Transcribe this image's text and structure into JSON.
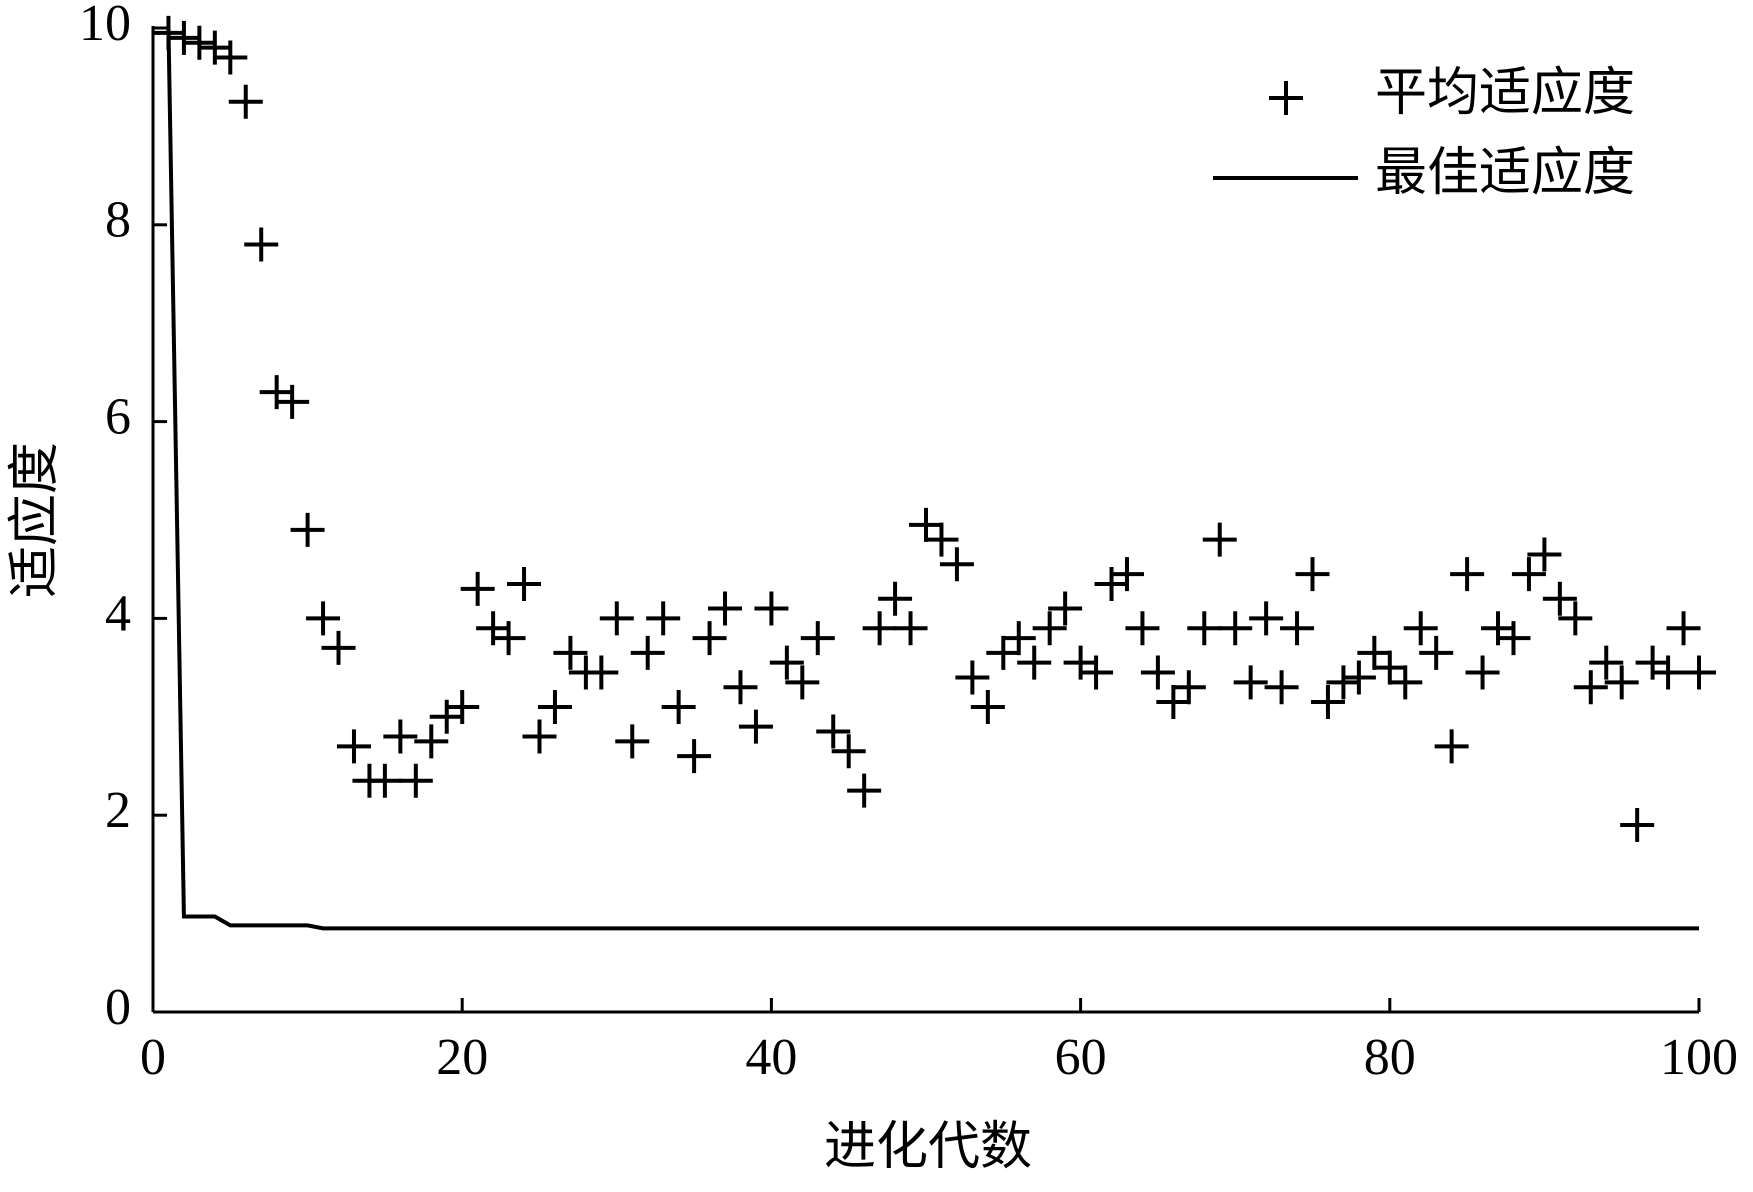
{
  "chart_data": {
    "type": "line",
    "x_label": "进化代数",
    "y_label": "适应度",
    "xlim": [
      0,
      100
    ],
    "xticks": [
      0,
      20,
      40,
      60,
      80,
      100
    ],
    "ylim": [
      0,
      10
    ],
    "yticks": [
      0,
      2,
      4,
      6,
      8,
      10
    ],
    "grid": false,
    "legend": "upper right",
    "x": [
      1,
      2,
      3,
      4,
      5,
      6,
      7,
      8,
      9,
      10,
      11,
      12,
      13,
      14,
      15,
      16,
      17,
      18,
      19,
      20,
      21,
      22,
      23,
      24,
      25,
      26,
      27,
      28,
      29,
      30,
      31,
      32,
      33,
      34,
      35,
      36,
      37,
      38,
      39,
      40,
      41,
      42,
      43,
      44,
      45,
      46,
      47,
      48,
      49,
      50,
      51,
      52,
      53,
      54,
      55,
      56,
      57,
      58,
      59,
      60,
      61,
      62,
      63,
      64,
      65,
      66,
      67,
      68,
      69,
      70,
      71,
      72,
      73,
      74,
      75,
      76,
      77,
      78,
      79,
      80,
      81,
      82,
      83,
      84,
      85,
      86,
      87,
      88,
      89,
      90,
      91,
      92,
      93,
      94,
      95,
      96,
      97,
      98,
      99,
      100
    ],
    "series": [
      {
        "name": "平均适应度",
        "type": "scatter",
        "marker": "+",
        "color": "#000000",
        "values": [
          9.95,
          9.9,
          9.85,
          9.8,
          9.7,
          9.25,
          7.8,
          6.3,
          6.2,
          4.9,
          4.0,
          3.7,
          2.7,
          2.35,
          2.35,
          2.8,
          2.35,
          2.75,
          3.0,
          3.1,
          4.3,
          3.9,
          3.8,
          4.35,
          2.8,
          3.1,
          3.65,
          3.45,
          3.45,
          4.0,
          2.75,
          3.65,
          4.0,
          3.1,
          2.6,
          3.8,
          4.1,
          3.3,
          2.9,
          4.1,
          3.55,
          3.35,
          3.8,
          2.85,
          2.65,
          2.25,
          3.9,
          4.2,
          3.9,
          4.95,
          4.8,
          4.55,
          3.4,
          3.1,
          3.65,
          3.8,
          3.55,
          3.9,
          4.1,
          3.55,
          3.45,
          4.35,
          4.45,
          3.9,
          3.45,
          3.15,
          3.3,
          3.9,
          4.8,
          3.9,
          3.35,
          4.0,
          3.3,
          3.9,
          4.45,
          3.15,
          3.35,
          3.4,
          3.65,
          3.5,
          3.35,
          3.9,
          3.65,
          2.7,
          4.45,
          3.45,
          3.9,
          3.8,
          4.45,
          4.65,
          4.2,
          4.0,
          3.3,
          3.55,
          3.35,
          1.9,
          3.55,
          3.45,
          3.9,
          3.45
        ]
      },
      {
        "name": "最佳适应度",
        "type": "line",
        "color": "#000000",
        "values": [
          10,
          0.97,
          0.97,
          0.97,
          0.88,
          0.88,
          0.88,
          0.88,
          0.88,
          0.88,
          0.85,
          0.85,
          0.85,
          0.85,
          0.85,
          0.85,
          0.85,
          0.85,
          0.85,
          0.85,
          0.85,
          0.85,
          0.85,
          0.85,
          0.85,
          0.85,
          0.85,
          0.85,
          0.85,
          0.85,
          0.85,
          0.85,
          0.85,
          0.85,
          0.85,
          0.85,
          0.85,
          0.85,
          0.85,
          0.85,
          0.85,
          0.85,
          0.85,
          0.85,
          0.85,
          0.85,
          0.85,
          0.85,
          0.85,
          0.85,
          0.85,
          0.85,
          0.85,
          0.85,
          0.85,
          0.85,
          0.85,
          0.85,
          0.85,
          0.85,
          0.85,
          0.85,
          0.85,
          0.85,
          0.85,
          0.85,
          0.85,
          0.85,
          0.85,
          0.85,
          0.85,
          0.85,
          0.85,
          0.85,
          0.85,
          0.85,
          0.85,
          0.85,
          0.85,
          0.85,
          0.85,
          0.85,
          0.85,
          0.85,
          0.85,
          0.85,
          0.85,
          0.85,
          0.85,
          0.85,
          0.85,
          0.85,
          0.85,
          0.85,
          0.85,
          0.85,
          0.85,
          0.85,
          0.85,
          0.85
        ]
      }
    ]
  }
}
